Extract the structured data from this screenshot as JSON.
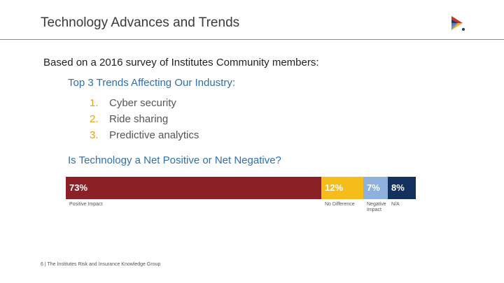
{
  "slide": {
    "title": "Technology Advances and Trends",
    "intro": "Based on a 2016 survey of Institutes Community members:",
    "trends_heading": "Top 3 Trends Affecting Our Industry:",
    "trends": [
      {
        "num": "1.",
        "text": "Cyber security"
      },
      {
        "num": "2.",
        "text": "Ride sharing"
      },
      {
        "num": "3.",
        "text": "Predictive analytics"
      }
    ],
    "net_heading": "Is Technology a Net Positive or Net Negative?",
    "footer": "6 | The Institutes Risk and Insurance Knowledge Group",
    "logo_icon": "institutes-logo-icon"
  },
  "chart_data": {
    "type": "bar",
    "orientation": "horizontal-stacked",
    "title": "",
    "categories": [
      "Positive Impact",
      "No Difference",
      "Negative Impact",
      "N/A"
    ],
    "values": [
      73,
      12,
      7,
      8
    ],
    "value_labels": [
      "73%",
      "12%",
      "7%",
      "8%"
    ],
    "colors": [
      "#8b2127",
      "#f6bd1a",
      "#8db0dc",
      "#13315f"
    ]
  }
}
